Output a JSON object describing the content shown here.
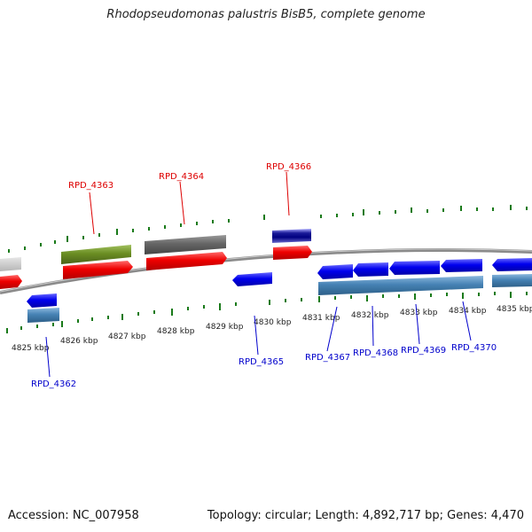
{
  "title": "Rhodopseudomonas palustris BisB5, complete genome",
  "accession": "Accession: NC_007958",
  "stats": "Topology: circular; Length: 4,892,717 bp; Genes: 4,470",
  "kbp_labels": [
    "4825 kbp",
    "4826 kbp",
    "4827 kbp",
    "4828 kbp",
    "4829 kbp",
    "4830 kbp",
    "4831 kbp",
    "4832 kbp",
    "4833 kbp",
    "4834 kbp",
    "4835 kbp"
  ],
  "gene_labels": {
    "rpd4362": "RPD_4362",
    "rpd4363": "RPD_4363",
    "rpd4364": "RPD_4364",
    "rpd4365": "RPD_4365",
    "rpd4366": "RPD_4366",
    "rpd4367": "RPD_4367",
    "rpd4368": "RPD_4368",
    "rpd4369": "RPD_4369",
    "rpd4370": "RPD_4370"
  },
  "colors": {
    "forward_cds": "#ee0000",
    "reverse_cds": "#0000ee",
    "forward_gene_olive": "#6b8e23",
    "forward_gene_grey": "#606060",
    "reverse_gene_steel": "#4682b4",
    "backbone": "#888888",
    "ticks": "#1a7a1a"
  }
}
